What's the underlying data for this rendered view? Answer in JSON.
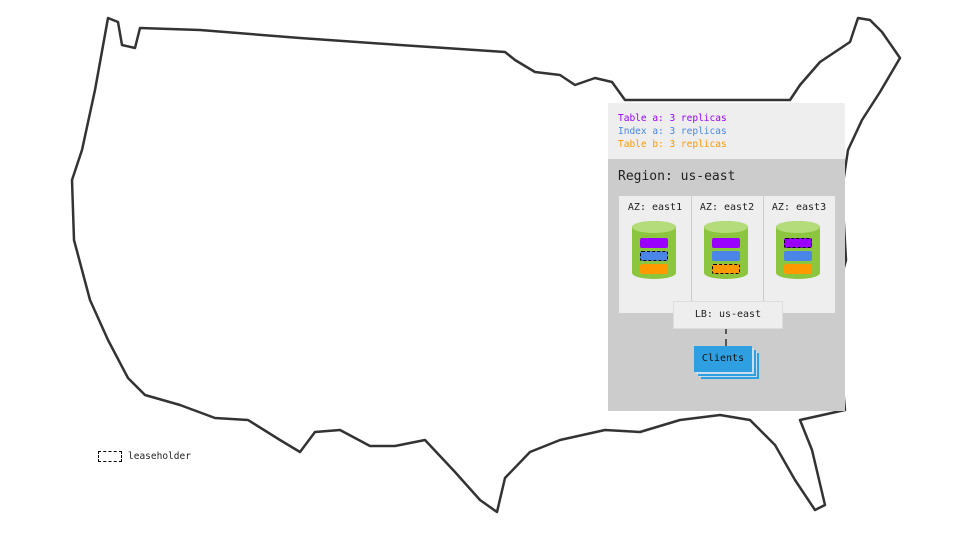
{
  "legend": {
    "items": [
      {
        "label": "Table a: 3 replicas",
        "color": "#9900ff"
      },
      {
        "label": "Index a: 3 replicas",
        "color": "#4a86e8"
      },
      {
        "label": "Table b: 3 replicas",
        "color": "#ff9900"
      }
    ],
    "leaseholder_label": "leaseholder"
  },
  "region": {
    "label": "Region: us-east",
    "zones": [
      {
        "label": "AZ: east1",
        "leaseholder": "index-a"
      },
      {
        "label": "AZ: east2",
        "leaseholder": "table-b"
      },
      {
        "label": "AZ: east3",
        "leaseholder": "table-a"
      }
    ],
    "load_balancer": "LB: us-east",
    "clients": "Clients"
  },
  "colors": {
    "node": "#8cc63f",
    "clients": "#2e9fe0",
    "panel": "#cccccc"
  }
}
